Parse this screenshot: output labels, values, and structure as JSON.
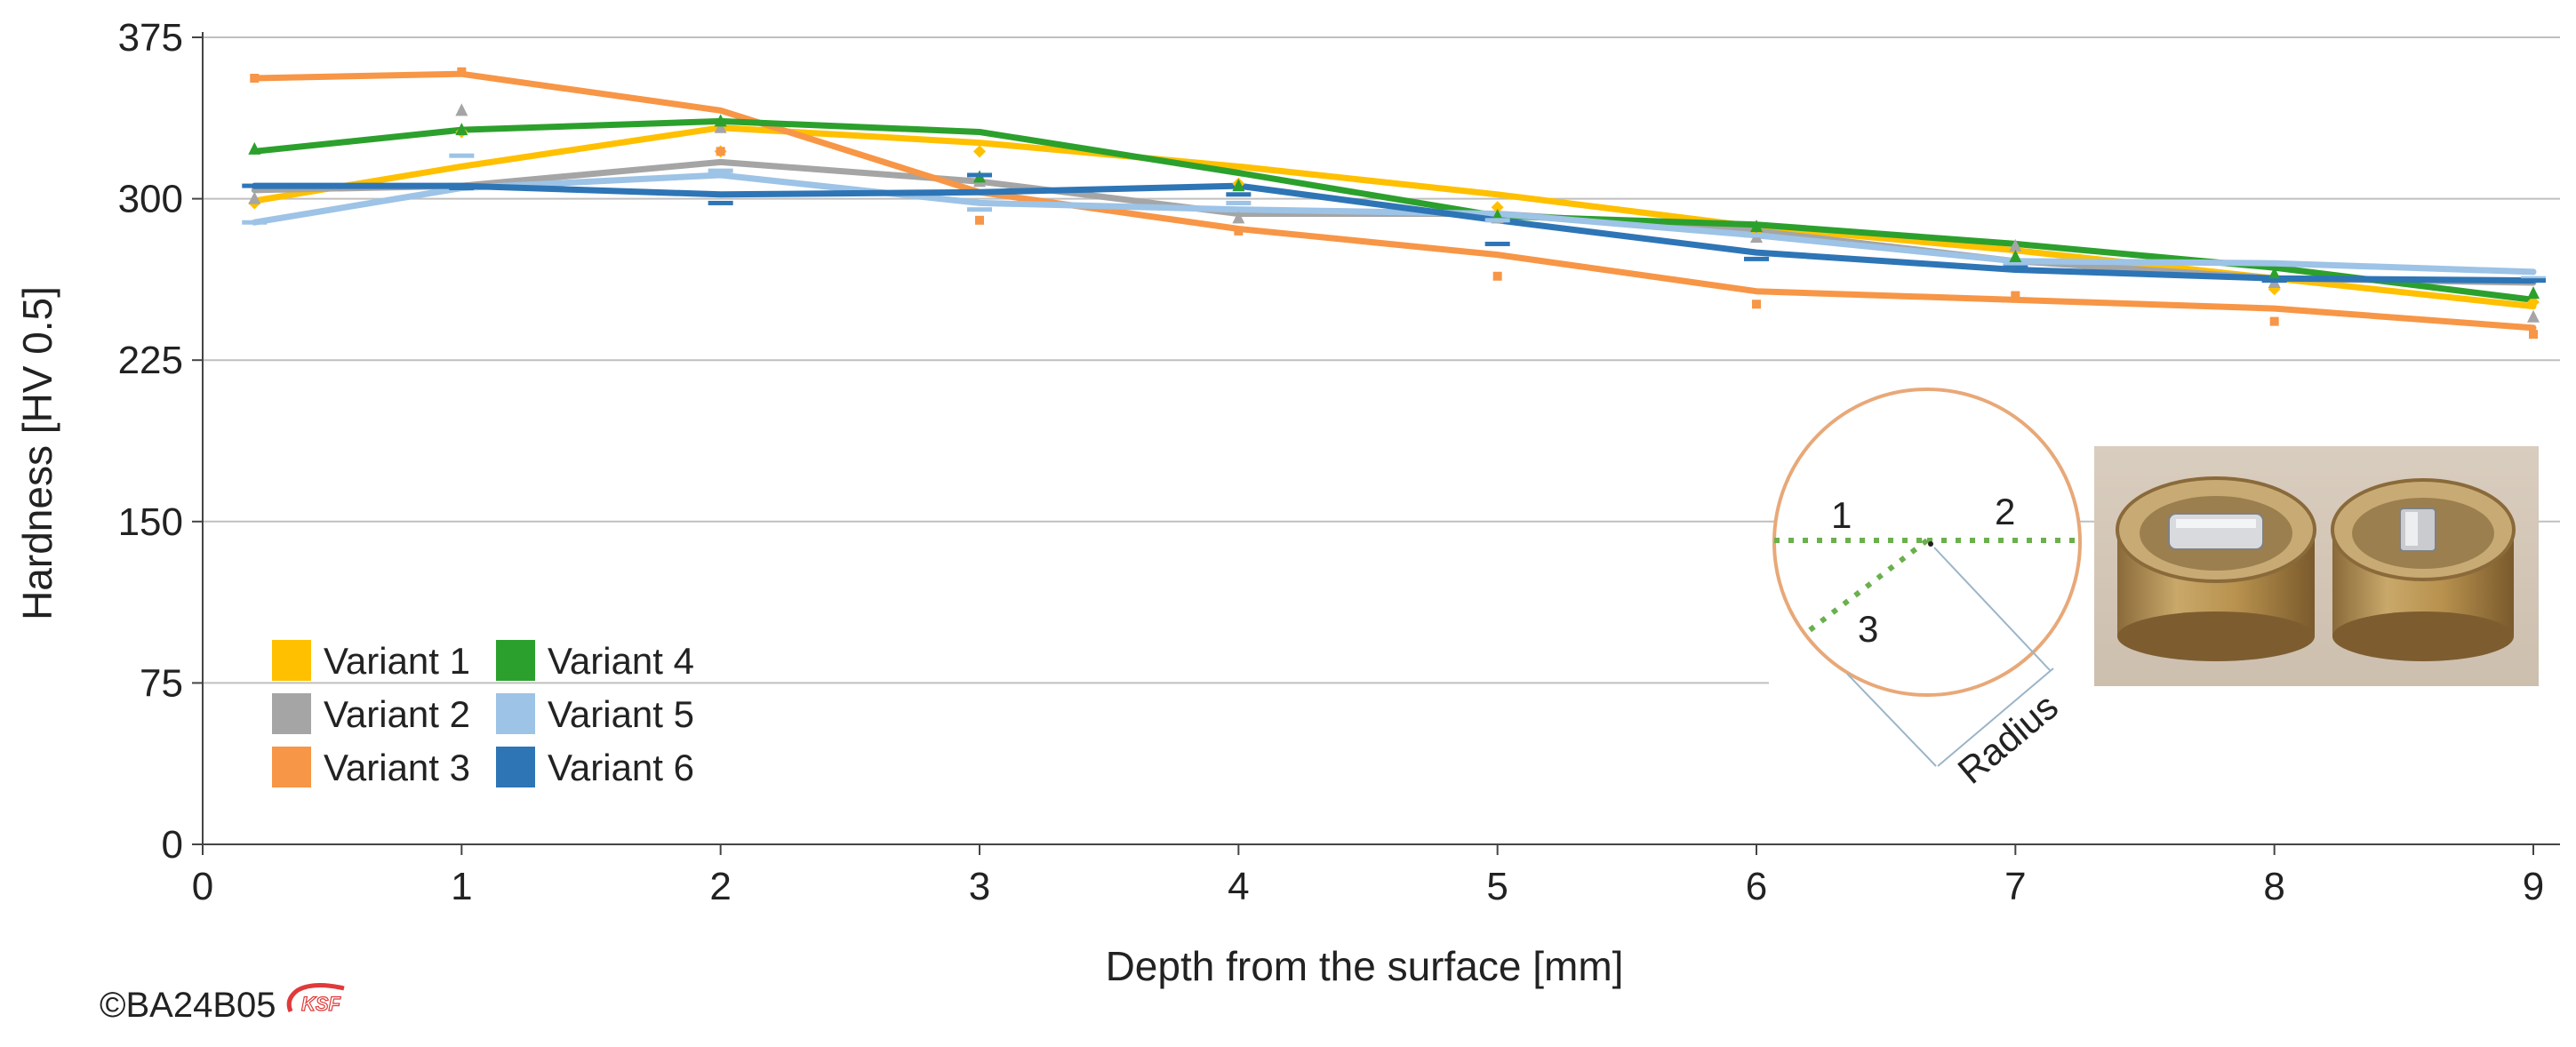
{
  "chart_data": {
    "type": "line",
    "xlabel": "Depth from the surface [mm]",
    "ylabel": "Hardness [HV 0.5]",
    "xlim": [
      0,
      9
    ],
    "ylim": [
      0,
      375
    ],
    "xticks": [
      "0",
      "1",
      "2",
      "3",
      "4",
      "5",
      "6",
      "7",
      "8",
      "9"
    ],
    "yticks": [
      "0",
      "75",
      "150",
      "225",
      "300",
      "375"
    ],
    "legend_position": "bottom-left",
    "series": [
      {
        "name": "Variant 1",
        "color": "#FFC000",
        "x": [
          0.2,
          1,
          2,
          3,
          4,
          5,
          6,
          7,
          8,
          9
        ],
        "values": [
          299,
          315,
          333,
          326,
          315,
          302,
          287,
          276,
          263,
          250
        ],
        "markers": [
          298,
          331,
          322,
          322,
          307,
          296,
          285,
          276,
          258,
          252
        ]
      },
      {
        "name": "Variant 2",
        "color": "#A5A5A5",
        "x": [
          0.2,
          1,
          2,
          3,
          4,
          5,
          6,
          7,
          8,
          9
        ],
        "values": [
          304,
          306,
          317,
          308,
          293,
          293,
          285,
          271,
          263,
          261
        ],
        "markers": [
          300,
          341,
          333,
          308,
          291,
          291,
          282,
          278,
          261,
          245
        ]
      },
      {
        "name": "Variant 3",
        "color": "#F79646",
        "x": [
          0.2,
          1,
          2,
          3,
          4,
          5,
          6,
          7,
          8,
          9
        ],
        "values": [
          356,
          358,
          341,
          303,
          286,
          274,
          257,
          253,
          249,
          240
        ],
        "markers": [
          356,
          359,
          322,
          290,
          285,
          264,
          251,
          255,
          243,
          237
        ]
      },
      {
        "name": "Variant 4",
        "color": "#2CA02C",
        "x": [
          0.2,
          1,
          2,
          3,
          4,
          5,
          6,
          7,
          8,
          9
        ],
        "values": [
          322,
          332,
          336,
          331,
          312,
          292,
          288,
          279,
          268,
          253
        ],
        "markers": [
          323,
          332,
          336,
          310,
          306,
          292,
          287,
          273,
          265,
          256
        ]
      },
      {
        "name": "Variant 5",
        "color": "#9DC3E6",
        "x": [
          0.2,
          1,
          2,
          3,
          4,
          5,
          6,
          7,
          8,
          9
        ],
        "values": [
          289,
          305,
          311,
          298,
          295,
          293,
          283,
          271,
          270,
          266
        ],
        "markers": [
          289,
          320,
          313,
          295,
          298,
          290,
          283,
          269,
          270,
          263
        ]
      },
      {
        "name": "Variant 6",
        "color": "#2E75B6",
        "x": [
          0.2,
          1,
          2,
          3,
          4,
          5,
          6,
          7,
          8,
          9
        ],
        "values": [
          306,
          306,
          302,
          303,
          306,
          290,
          275,
          267,
          263,
          262
        ],
        "markers": [
          306,
          305,
          298,
          311,
          302,
          279,
          272,
          268,
          262,
          262
        ]
      }
    ]
  },
  "inset": {
    "circle_color": "#E8A878",
    "line_color": "#6AB04C",
    "label_1": "1",
    "label_2": "2",
    "label_3": "3",
    "radius_label": "Radius",
    "photo_caption": "Two cylindrical sample specimens"
  },
  "footer": {
    "copyright": "©BA24B05",
    "logo_text": "KSF"
  }
}
